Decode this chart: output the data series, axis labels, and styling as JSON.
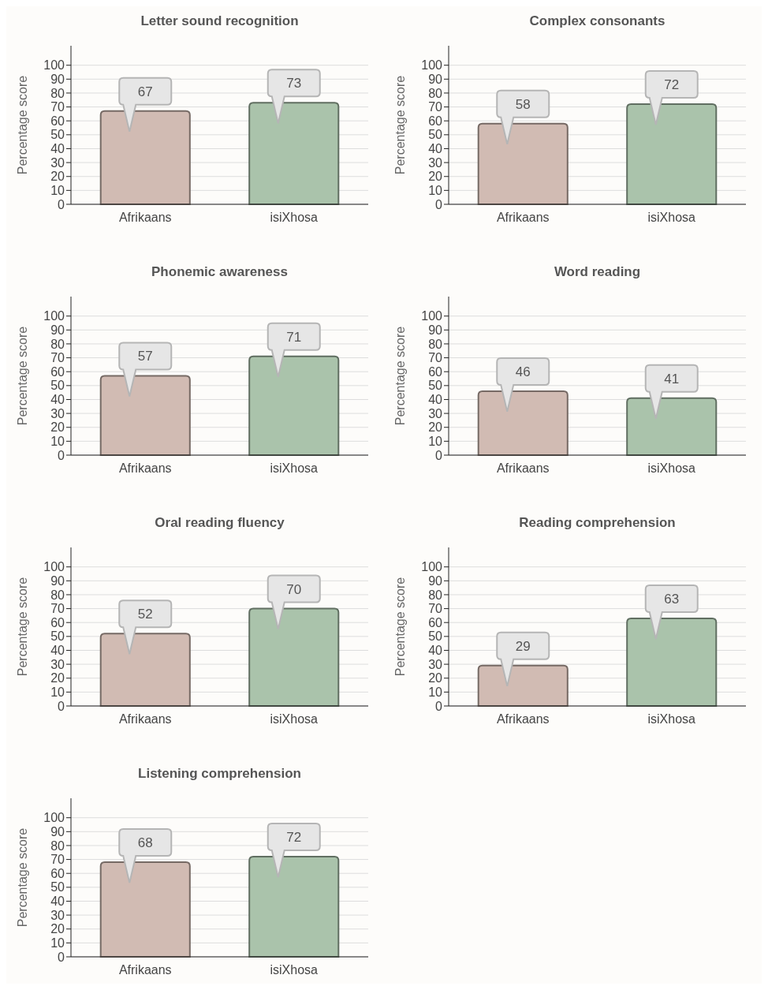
{
  "chart_data": [
    {
      "type": "bar",
      "title": "Letter sound recognition",
      "ylabel": "Percentage score",
      "categories": [
        "Afrikaans",
        "isiXhosa"
      ],
      "values": [
        67,
        73
      ],
      "colors": [
        "#d1bbb3",
        "#aac3ab"
      ],
      "ylim": [
        0,
        114
      ],
      "yticks": [
        0,
        10,
        20,
        30,
        40,
        50,
        60,
        70,
        80,
        90,
        100
      ],
      "grid": "y",
      "data_labels": true
    },
    {
      "type": "bar",
      "title": "Complex consonants",
      "ylabel": "Percentage score",
      "categories": [
        "Afrikaans",
        "isiXhosa"
      ],
      "values": [
        58,
        72
      ],
      "colors": [
        "#d1bbb3",
        "#aac3ab"
      ],
      "ylim": [
        0,
        114
      ],
      "yticks": [
        0,
        10,
        20,
        30,
        40,
        50,
        60,
        70,
        80,
        90,
        100
      ],
      "grid": "y",
      "data_labels": true
    },
    {
      "type": "bar",
      "title": "Phonemic awareness",
      "ylabel": "Percentage score",
      "categories": [
        "Afrikaans",
        "isiXhosa"
      ],
      "values": [
        57,
        71
      ],
      "colors": [
        "#d1bbb3",
        "#aac3ab"
      ],
      "ylim": [
        0,
        114
      ],
      "yticks": [
        0,
        10,
        20,
        30,
        40,
        50,
        60,
        70,
        80,
        90,
        100
      ],
      "grid": "y",
      "data_labels": true
    },
    {
      "type": "bar",
      "title": "Word reading",
      "ylabel": "Percentage score",
      "categories": [
        "Afrikaans",
        "isiXhosa"
      ],
      "values": [
        46,
        41
      ],
      "colors": [
        "#d1bbb3",
        "#aac3ab"
      ],
      "ylim": [
        0,
        114
      ],
      "yticks": [
        0,
        10,
        20,
        30,
        40,
        50,
        60,
        70,
        80,
        90,
        100
      ],
      "grid": "y",
      "data_labels": true
    },
    {
      "type": "bar",
      "title": "Oral reading fluency",
      "ylabel": "Percentage score",
      "categories": [
        "Afrikaans",
        "isiXhosa"
      ],
      "values": [
        52,
        70
      ],
      "colors": [
        "#d1bbb3",
        "#aac3ab"
      ],
      "ylim": [
        0,
        114
      ],
      "yticks": [
        0,
        10,
        20,
        30,
        40,
        50,
        60,
        70,
        80,
        90,
        100
      ],
      "grid": "y",
      "data_labels": true
    },
    {
      "type": "bar",
      "title": "Reading comprehension",
      "ylabel": "Percentage score",
      "categories": [
        "Afrikaans",
        "isiXhosa"
      ],
      "values": [
        29,
        63
      ],
      "colors": [
        "#d1bbb3",
        "#aac3ab"
      ],
      "ylim": [
        0,
        114
      ],
      "yticks": [
        0,
        10,
        20,
        30,
        40,
        50,
        60,
        70,
        80,
        90,
        100
      ],
      "grid": "y",
      "data_labels": true
    },
    {
      "type": "bar",
      "title": "Listening comprehension",
      "ylabel": "Percentage score",
      "categories": [
        "Afrikaans",
        "isiXhosa"
      ],
      "values": [
        68,
        72
      ],
      "colors": [
        "#d1bbb3",
        "#aac3ab"
      ],
      "ylim": [
        0,
        114
      ],
      "yticks": [
        0,
        10,
        20,
        30,
        40,
        50,
        60,
        70,
        80,
        90,
        100
      ],
      "grid": "y",
      "data_labels": true
    }
  ]
}
